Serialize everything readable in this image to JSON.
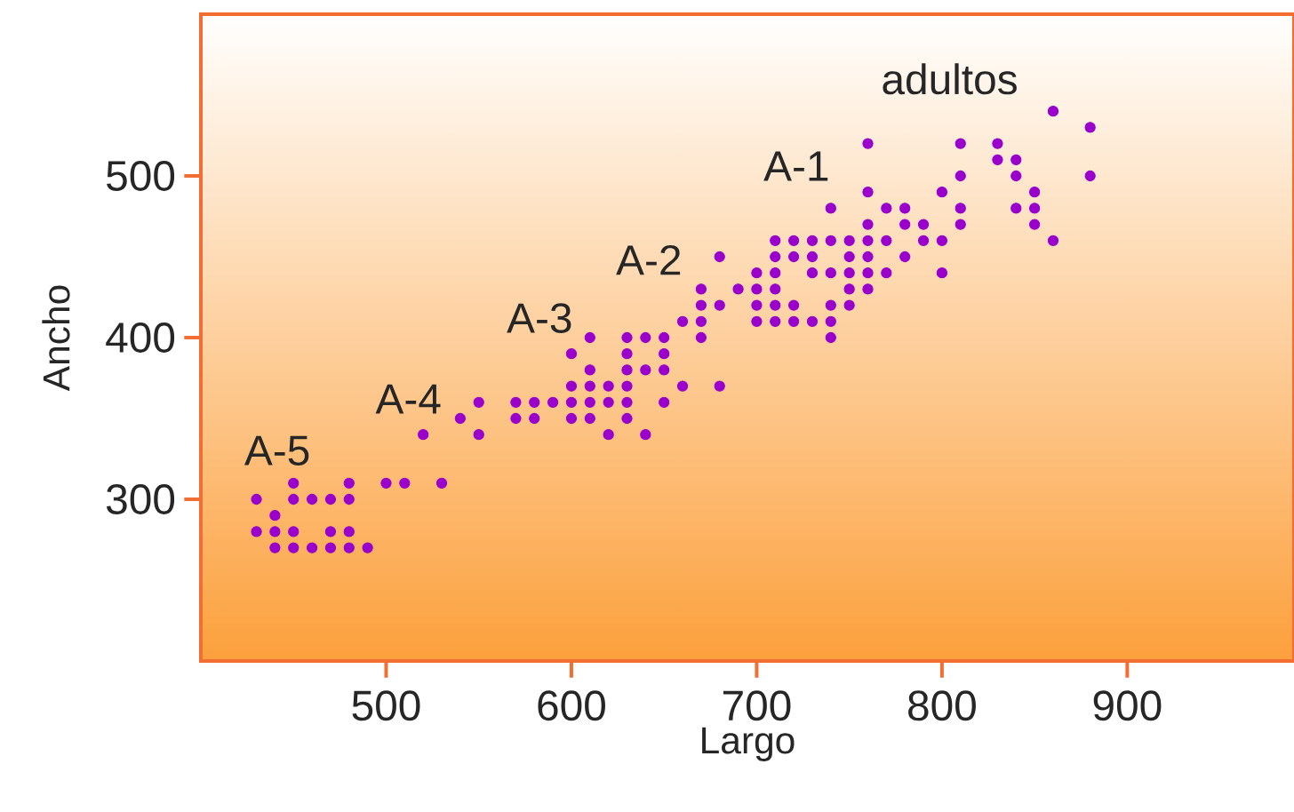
{
  "chart_data": {
    "type": "scatter",
    "xlabel": "Largo",
    "ylabel": "Ancho",
    "xlim": [
      400,
      990
    ],
    "ylim": [
      200,
      600
    ],
    "xticks": [
      500,
      600,
      700,
      800,
      900
    ],
    "yticks": [
      300,
      400,
      500
    ],
    "marker": "circle",
    "grid": false,
    "series": [
      {
        "color": "#9a00cc",
        "x": [
          860,
          880,
          760,
          810,
          830,
          830,
          840,
          810,
          840,
          880,
          760,
          800,
          850,
          740,
          770,
          780,
          810,
          840,
          850,
          760,
          780,
          790,
          810,
          850,
          710,
          720,
          730,
          740,
          750,
          760,
          770,
          790,
          800,
          860,
          680,
          710,
          720,
          730,
          750,
          760,
          780,
          700,
          710,
          730,
          740,
          750,
          760,
          770,
          800,
          670,
          690,
          700,
          710,
          750,
          760,
          670,
          680,
          700,
          710,
          720,
          740,
          750,
          660,
          670,
          700,
          710,
          720,
          730,
          740,
          610,
          630,
          640,
          650,
          670,
          740,
          600,
          630,
          650,
          610,
          630,
          640,
          650,
          600,
          610,
          620,
          630,
          660,
          680,
          550,
          570,
          580,
          590,
          600,
          610,
          620,
          630,
          650,
          540,
          570,
          580,
          600,
          610,
          630,
          520,
          550,
          620,
          640,
          450,
          480,
          500,
          510,
          530,
          430,
          450,
          460,
          470,
          480,
          440,
          430,
          440,
          450,
          470,
          480,
          440,
          450,
          460,
          470,
          480,
          490
        ],
        "values": [
          540,
          530,
          520,
          520,
          520,
          510,
          510,
          500,
          500,
          500,
          490,
          490,
          490,
          480,
          480,
          480,
          480,
          480,
          480,
          470,
          470,
          470,
          470,
          470,
          460,
          460,
          460,
          460,
          460,
          460,
          460,
          460,
          460,
          460,
          450,
          450,
          450,
          450,
          450,
          450,
          450,
          440,
          440,
          440,
          440,
          440,
          440,
          440,
          440,
          430,
          430,
          430,
          430,
          430,
          430,
          420,
          420,
          420,
          420,
          420,
          420,
          420,
          410,
          410,
          410,
          410,
          410,
          410,
          410,
          400,
          400,
          400,
          400,
          400,
          400,
          390,
          390,
          390,
          380,
          380,
          380,
          380,
          370,
          370,
          370,
          370,
          370,
          370,
          360,
          360,
          360,
          360,
          360,
          360,
          360,
          360,
          360,
          350,
          350,
          350,
          350,
          350,
          350,
          340,
          340,
          340,
          340,
          310,
          310,
          310,
          310,
          310,
          300,
          300,
          300,
          300,
          300,
          290,
          280,
          280,
          280,
          280,
          280,
          270,
          270,
          270,
          270,
          270,
          270
        ]
      }
    ],
    "annotations": [
      "A-5",
      "A-4",
      "A-3",
      "A-2",
      "A-1",
      "adultos"
    ]
  }
}
